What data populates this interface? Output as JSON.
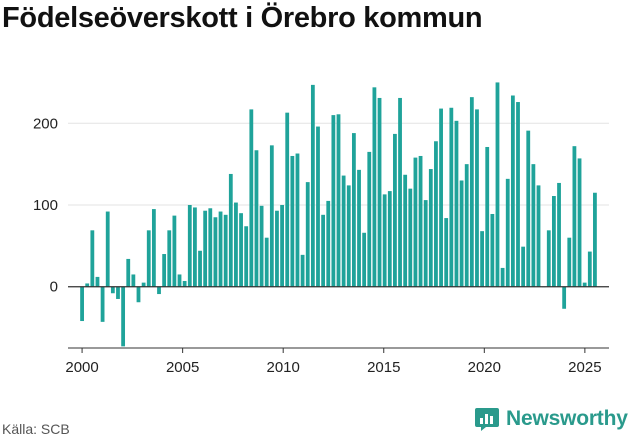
{
  "title": "Födelseöverskott i Örebro kommun",
  "source": "Källa: SCB",
  "brand": {
    "name": "Newsworthy",
    "icon": "newsworthy-logo-icon"
  },
  "colors": {
    "bar": "#1fa39a",
    "grid": "#e3e3e3",
    "axis": "#333333",
    "brand": "#2a9a8c"
  },
  "chart_data": {
    "type": "bar",
    "xlabel": "",
    "ylabel": "",
    "xlim": [
      1999.3,
      2026.2
    ],
    "ylim": [
      -75,
      275
    ],
    "x_ticks": [
      2000,
      2005,
      2010,
      2015,
      2020,
      2025
    ],
    "y_ticks": [
      0,
      100,
      200
    ],
    "grid": true,
    "series": [
      {
        "values": [
          -42,
          4,
          69,
          12,
          -43,
          92,
          -8,
          -15,
          -73,
          34,
          15,
          -19,
          5,
          69,
          95,
          -9,
          40,
          69,
          87,
          15,
          7,
          100,
          97,
          44,
          93,
          96,
          85,
          92,
          88,
          138,
          103,
          90,
          74,
          217,
          167,
          99,
          60,
          173,
          93,
          100,
          213,
          160,
          163,
          39,
          128,
          247,
          196,
          88,
          105,
          210,
          211,
          136,
          124,
          188,
          143,
          66,
          165,
          244,
          231,
          113,
          117,
          187,
          231,
          137,
          120,
          158,
          160,
          106,
          144,
          178,
          218,
          84,
          219,
          203,
          130,
          150,
          232,
          217,
          68,
          171,
          89,
          250,
          23,
          132,
          234,
          226,
          49,
          191,
          150,
          124,
          0,
          69,
          111,
          127,
          -27,
          60,
          172,
          157,
          5,
          43,
          115
        ]
      }
    ]
  }
}
